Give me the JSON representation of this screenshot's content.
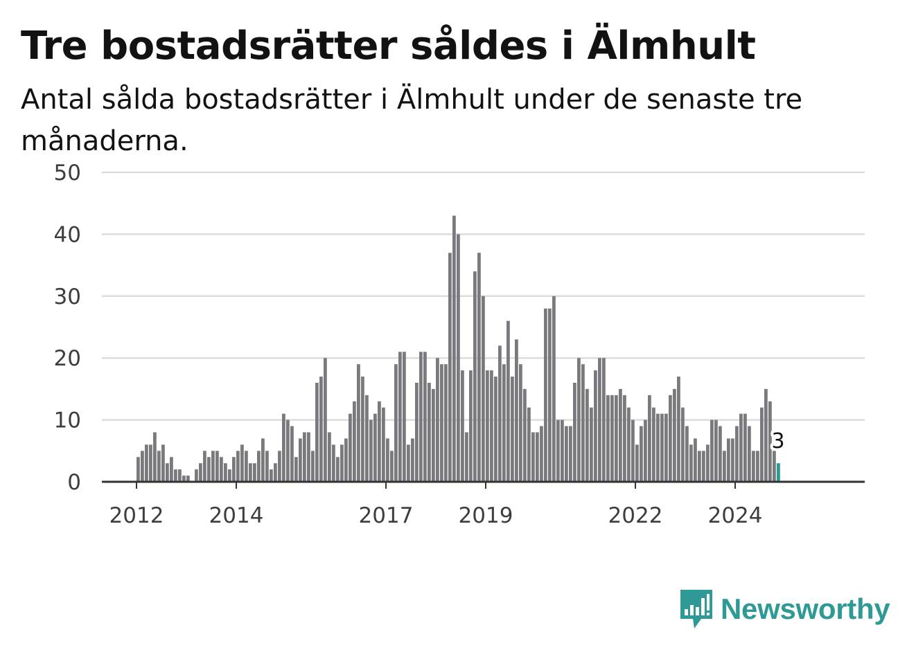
{
  "header": {
    "title": "Tre bostadsrätter såldes i Älmhult",
    "subtitle": "Antal sålda bostadsrätter i Älmhult under de senaste tre månaderna."
  },
  "colors": {
    "bar": "#7a797e",
    "highlight": "#2a9a97",
    "grid": "#dcdcdc",
    "axis": "#333333",
    "brand": "#2f9996"
  },
  "logo": {
    "text": "Newsworthy",
    "icon": "newsworthy-logo-icon"
  },
  "chart_data": {
    "type": "bar",
    "title": "Tre bostadsrätter såldes i Älmhult",
    "subtitle": "Antal sålda bostadsrätter i Älmhult under de senaste tre månaderna.",
    "xlabel": "",
    "ylabel": "",
    "ylim": [
      0,
      50
    ],
    "yticks": [
      0,
      10,
      20,
      30,
      40,
      50
    ],
    "xticks": [
      "2012",
      "2014",
      "2017",
      "2019",
      "2022",
      "2024"
    ],
    "grid": true,
    "legend": "none",
    "x_start": "2012-01",
    "x_end": "2024-11",
    "bar_interval": "month",
    "values": [
      4,
      5,
      6,
      6,
      8,
      5,
      6,
      3,
      4,
      2,
      2,
      1,
      1,
      0,
      2,
      3,
      5,
      4,
      5,
      5,
      4,
      3,
      2,
      4,
      5,
      6,
      5,
      3,
      3,
      5,
      7,
      5,
      2,
      3,
      5,
      11,
      10,
      9,
      4,
      7,
      8,
      8,
      5,
      16,
      17,
      20,
      8,
      6,
      4,
      6,
      7,
      11,
      13,
      19,
      17,
      14,
      10,
      11,
      13,
      12,
      7,
      5,
      19,
      21,
      21,
      6,
      7,
      16,
      21,
      21,
      16,
      15,
      20,
      19,
      19,
      37,
      43,
      40,
      18,
      8,
      18,
      34,
      37,
      30,
      18,
      18,
      17,
      22,
      19,
      26,
      17,
      23,
      19,
      15,
      12,
      8,
      8,
      9,
      28,
      28,
      30,
      10,
      10,
      9,
      9,
      16,
      20,
      19,
      15,
      12,
      18,
      20,
      20,
      14,
      14,
      14,
      15,
      14,
      12,
      10,
      6,
      9,
      10,
      14,
      12,
      11,
      11,
      11,
      14,
      15,
      17,
      12,
      9,
      6,
      7,
      5,
      5,
      6,
      10,
      10,
      9,
      5,
      7,
      7,
      9,
      11,
      11,
      9,
      5,
      5,
      12,
      15,
      13,
      5,
      3
    ],
    "highlight": {
      "label": "3",
      "value": 3,
      "position": "last"
    }
  }
}
